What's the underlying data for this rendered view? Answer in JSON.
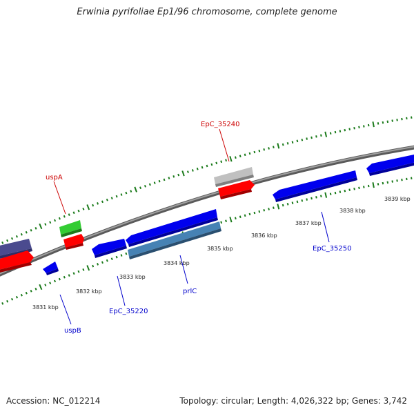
{
  "title": "Erwinia pyrifoliae Ep1/96 chromosome, complete genome",
  "accession": "Accession: NC_012214",
  "stats": "Topology: circular; Length: 4,026,322 bp; Genes: 3,742",
  "colors": {
    "tick": "#1a7a1a",
    "backbone": "#808080",
    "forward_label": "#cc0000",
    "reverse_label": "#0000cc"
  },
  "kbp_labels": [
    "3831 kbp",
    "3832 kbp",
    "3833 kbp",
    "3834 kbp",
    "3835 kbp",
    "3836 kbp",
    "3837 kbp",
    "3838 kbp",
    "3839 kbp"
  ],
  "gene_labels": {
    "uspA": "uspA",
    "EpC_35240": "EpC_35240",
    "uspB": "uspB",
    "EpC_35220": "EpC_35220",
    "prlC": "prlC",
    "EpC_35250": "EpC_35250"
  },
  "features": [
    {
      "id": "purple-left",
      "strand": "+",
      "color": "#4b4b8f"
    },
    {
      "id": "red-left",
      "strand": "+",
      "color": "#ff0000"
    },
    {
      "id": "uspB",
      "strand": "-",
      "color": "#0000ee"
    },
    {
      "id": "uspA-green",
      "strand": "+",
      "color": "#33cc33"
    },
    {
      "id": "uspA-red",
      "strand": "+",
      "color": "#ff0000"
    },
    {
      "id": "EpC_35220",
      "strand": "-",
      "color": "#0000ee"
    },
    {
      "id": "blue-long",
      "strand": "-",
      "color": "#0000ee"
    },
    {
      "id": "prlC",
      "strand": "-",
      "color": "#4682b4"
    },
    {
      "id": "EpC_35240-grey",
      "strand": "+",
      "color": "#c0c0c0"
    },
    {
      "id": "EpC_35240-red",
      "strand": "+",
      "color": "#ff0000"
    },
    {
      "id": "EpC_35250",
      "strand": "-",
      "color": "#0000ee"
    },
    {
      "id": "blue-right",
      "strand": "-",
      "color": "#0000ee"
    }
  ]
}
